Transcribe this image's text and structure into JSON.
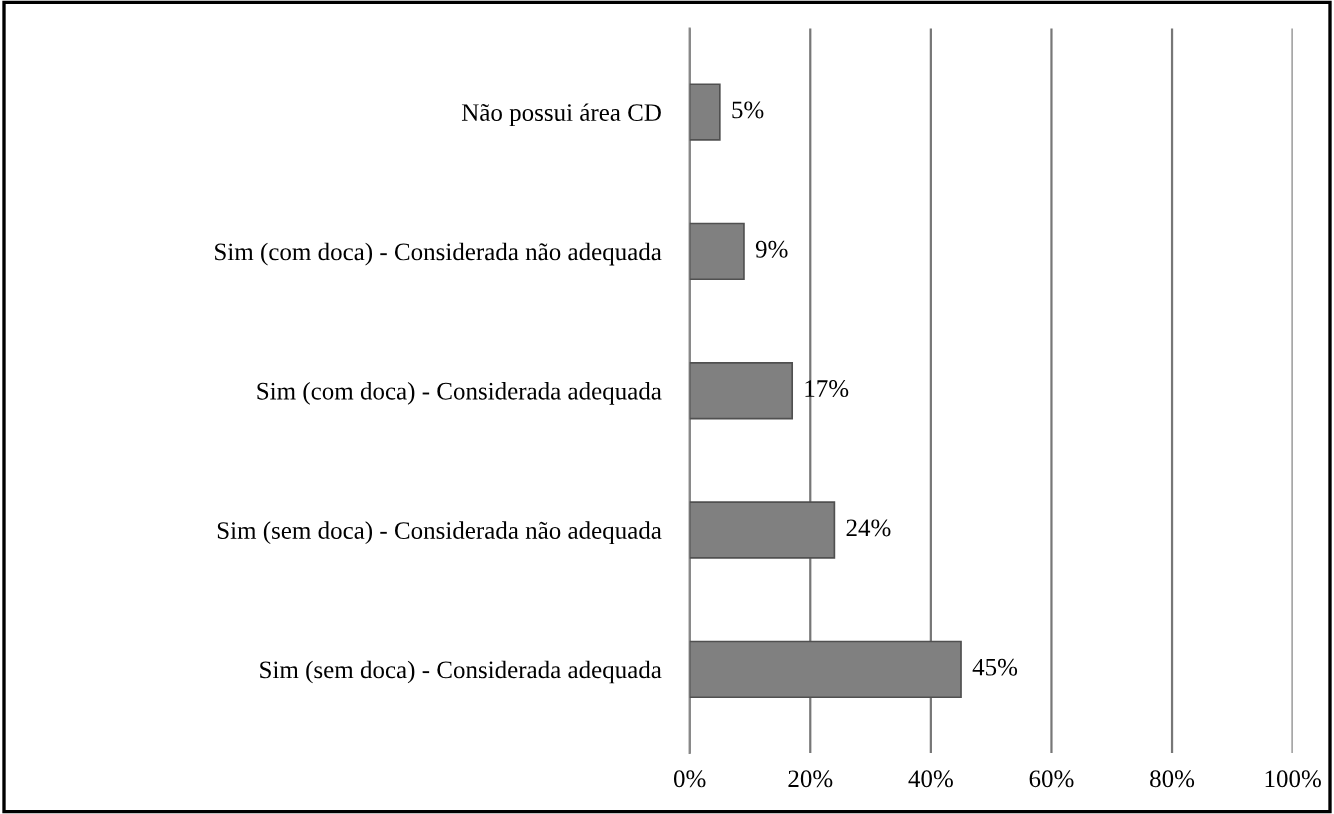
{
  "chart_data": {
    "type": "bar",
    "orientation": "horizontal",
    "categories": [
      "Não possui área CD",
      "Sim (com doca) - Considerada não adequada",
      "Sim (com doca) - Considerada adequada",
      "Sim (sem doca) - Considerada não adequada",
      "Sim (sem doca) - Considerada adequada"
    ],
    "values": [
      5,
      9,
      17,
      24,
      45
    ],
    "value_labels": [
      "5%",
      "9%",
      "17%",
      "24%",
      "45%"
    ],
    "color": "#808080",
    "xlim": [
      0,
      100
    ],
    "xticks": [
      {
        "value": 0,
        "label": "0%"
      },
      {
        "value": 20,
        "label": "20%"
      },
      {
        "value": 40,
        "label": "40%"
      },
      {
        "value": 60,
        "label": "60%"
      },
      {
        "value": 80,
        "label": "80%"
      },
      {
        "value": 100,
        "label": "100%"
      }
    ],
    "grid": "x"
  }
}
